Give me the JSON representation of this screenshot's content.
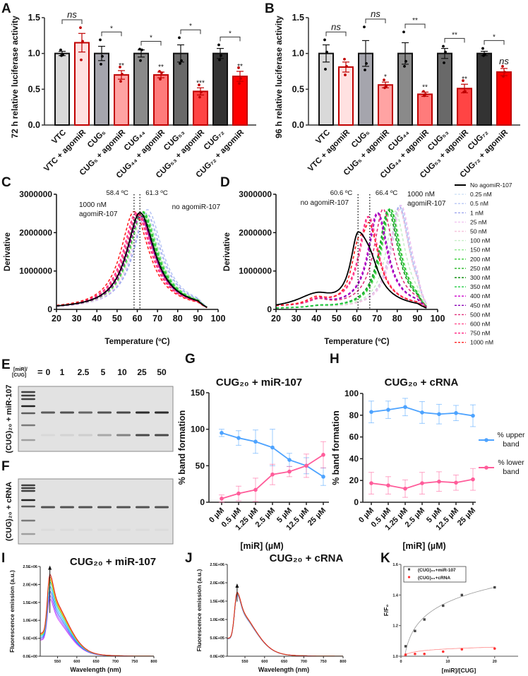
{
  "panel_letters": [
    "A",
    "B",
    "C",
    "D",
    "E",
    "F",
    "G",
    "H",
    "I",
    "J",
    "K"
  ],
  "chart_data": [
    {
      "id": "A",
      "type": "bar",
      "ylabel": "72 h relative luciferase activity",
      "yticks": [
        "0.0",
        "0.5",
        "1.0",
        "1.5"
      ],
      "ylim": [
        0,
        1.5
      ],
      "categories": [
        "VTC",
        "VTC + agomiR",
        "CUG₅",
        "CUG₅ + agomiR",
        "CUG₄₄",
        "CUG₄₄ + agomiR",
        "CUG₅₃",
        "CUG₅₃ + agomiR",
        "CUG₇₂",
        "CUG₇₂ + agomiR"
      ],
      "values": [
        1.0,
        1.15,
        1.0,
        0.7,
        1.0,
        0.7,
        1.0,
        0.47,
        1.0,
        0.68
      ],
      "sem": [
        0.03,
        0.13,
        0.1,
        0.06,
        0.05,
        0.04,
        0.12,
        0.05,
        0.07,
        0.07
      ],
      "points": [
        [
          1.05,
          0.98,
          0.97
        ],
        [
          1.36,
          1.17,
          0.91
        ],
        [
          1.19,
          0.96,
          0.85
        ],
        [
          0.81,
          0.71,
          0.61
        ],
        [
          1.06,
          1.05,
          0.9
        ],
        [
          0.75,
          0.73,
          0.64
        ],
        [
          1.22,
          0.9,
          0.86
        ],
        [
          0.56,
          0.46,
          0.39
        ],
        [
          1.12,
          0.97,
          0.91
        ],
        [
          0.8,
          0.65,
          0.58
        ]
      ],
      "stars": [
        "",
        "",
        "",
        "**",
        "",
        "**",
        "",
        "***",
        "",
        "**"
      ],
      "brackets": [
        "ns",
        "*",
        "*",
        "*",
        "*"
      ],
      "fills": [
        "#d9d9d9",
        "#ffe1e1",
        "#a5a5ad",
        "#ffa3a3",
        "#8a8a8a",
        "#ff7b7b",
        "#696969",
        "#ff4444",
        "#333333",
        "#ff0000"
      ]
    },
    {
      "id": "B",
      "type": "bar",
      "ylabel": "96 h relative luciferase activity",
      "yticks": [
        "0.0",
        "0.5",
        "1.0",
        "1.5"
      ],
      "ylim": [
        0,
        1.5
      ],
      "categories": [
        "VTC",
        "VTC + agomiR",
        "CUG₅",
        "CUG₅ + agomiR",
        "CUG₄₄",
        "CUG₄₄ + agomiR",
        "CUG₅₃",
        "CUG₅₃ + agomiR",
        "CUG₇₂",
        "CUG₇₂ + agomiR"
      ],
      "values": [
        1.0,
        0.81,
        1.0,
        0.56,
        1.0,
        0.43,
        1.0,
        0.51,
        1.0,
        0.74
      ],
      "sem": [
        0.12,
        0.07,
        0.18,
        0.04,
        0.15,
        0.03,
        0.07,
        0.06,
        0.03,
        0.05
      ],
      "points": [
        [
          1.19,
          1.02,
          0.78
        ],
        [
          0.92,
          0.82,
          0.7
        ],
        [
          1.37,
          0.86,
          0.77
        ],
        [
          0.63,
          0.54,
          0.52
        ],
        [
          1.3,
          0.89,
          0.82
        ],
        [
          0.47,
          0.43,
          0.41
        ],
        [
          1.1,
          1.02,
          0.87
        ],
        [
          0.62,
          0.47,
          0.46
        ],
        [
          1.07,
          0.99,
          0.97
        ],
        [
          0.82,
          0.74,
          0.68
        ]
      ],
      "stars": [
        "",
        "",
        "",
        "*",
        "",
        "**",
        "",
        "**",
        "",
        "ns"
      ],
      "brackets": [
        "ns",
        "ns",
        "**",
        "**",
        "*"
      ],
      "fills": [
        "#d9d9d9",
        "#ffe1e1",
        "#a5a5ad",
        "#ffa3a3",
        "#8a8a8a",
        "#ff7b7b",
        "#696969",
        "#ff4444",
        "#333333",
        "#ff0000"
      ]
    },
    {
      "id": "C",
      "type": "line",
      "xlabel": "Temperature (ºC)",
      "ylabel": "Derivative",
      "xticks": [
        "20",
        "30",
        "40",
        "50",
        "60",
        "70",
        "80",
        "90",
        "100"
      ],
      "yticks": [
        "0",
        "1000000",
        "2000000",
        "3000000"
      ],
      "xlim": [
        20,
        100
      ],
      "ylim": [
        0,
        3000000
      ],
      "vlines": [
        {
          "value": 58.4,
          "label": "58.4 ºC"
        },
        {
          "value": 61.3,
          "label": "61.3 ºC"
        }
      ],
      "annotations": [
        "1000 nM",
        "agomiR-107",
        "no agomiR-107"
      ],
      "series": [
        {
          "name": "No agomiR-107",
          "tm": 61.3,
          "peak": 2520000
        },
        {
          "name": "0.25 nM",
          "tm": 64.0,
          "peak": 2450000
        },
        {
          "name": "0.5 nM",
          "tm": 65.0,
          "peak": 2600000
        },
        {
          "name": "1 nM",
          "tm": 64.5,
          "peak": 2500000
        },
        {
          "name": "25 nM",
          "tm": 63.0,
          "peak": 2300000
        },
        {
          "name": "50 nM",
          "tm": 62.5,
          "peak": 2400000
        },
        {
          "name": "100 nM",
          "tm": 63.0,
          "peak": 2500000
        },
        {
          "name": "150 nM",
          "tm": 63.0,
          "peak": 2550000
        },
        {
          "name": "200 nM",
          "tm": 62.5,
          "peak": 2550000
        },
        {
          "name": "250 nM",
          "tm": 62.0,
          "peak": 2500000
        },
        {
          "name": "300 nM",
          "tm": 61.5,
          "peak": 2450000
        },
        {
          "name": "350 nM",
          "tm": 62.0,
          "peak": 2550000
        },
        {
          "name": "400 nM",
          "tm": 61.5,
          "peak": 2400000
        },
        {
          "name": "450 nM",
          "tm": 61.0,
          "peak": 2450000
        },
        {
          "name": "500 nM",
          "tm": 60.5,
          "peak": 2500000
        },
        {
          "name": "600 nM",
          "tm": 60.0,
          "peak": 2500000
        },
        {
          "name": "750 nM",
          "tm": 59.5,
          "peak": 2520000
        },
        {
          "name": "1000 nM",
          "tm": 58.4,
          "peak": 2550000
        }
      ]
    },
    {
      "id": "D",
      "type": "line",
      "xlabel": "Temperature (ºC)",
      "ylabel": "Derivative",
      "xticks": [
        "20",
        "30",
        "40",
        "50",
        "60",
        "70",
        "80",
        "90",
        "100"
      ],
      "yticks": [
        "0",
        "1000000",
        "2000000",
        "3000000"
      ],
      "xlim": [
        20,
        100
      ],
      "ylim": [
        0,
        3000000
      ],
      "vlines": [
        {
          "value": 60.6,
          "label": "60.6 ºC"
        },
        {
          "value": 66.4,
          "label": "66.4 ºC"
        }
      ],
      "annotations": [
        "no agomiR-107",
        "1000 nM",
        "agomiR-107"
      ],
      "legend": "right",
      "series": [
        {
          "name": "No agomiR-107",
          "color": "#000000",
          "dashed": false,
          "tm": 60.6,
          "peak": 1850000
        },
        {
          "name": "0.25 nM",
          "color": "#cfe0f5",
          "dashed": true,
          "tm": 81.0,
          "peak": 2650000
        },
        {
          "name": "0.5 nM",
          "color": "#b8c6f5",
          "dashed": true,
          "tm": 81.5,
          "peak": 2700000
        },
        {
          "name": "1 nM",
          "color": "#a0a8ee",
          "dashed": true,
          "tm": 81.0,
          "peak": 2680000
        },
        {
          "name": "25 nM",
          "color": "#f0c4f0",
          "dashed": true,
          "tm": 82.0,
          "peak": 2700000
        },
        {
          "name": "50 nM",
          "color": "#f5c6dc",
          "dashed": true,
          "tm": 81.0,
          "peak": 2600000
        },
        {
          "name": "100 nM",
          "color": "#c6efc6",
          "dashed": true,
          "tm": 79.0,
          "peak": 2550000
        },
        {
          "name": "150 nM",
          "color": "#8ee88e",
          "dashed": true,
          "tm": 77.0,
          "peak": 2600000
        },
        {
          "name": "200 nM",
          "color": "#33cc33",
          "dashed": true,
          "tm": 76.0,
          "peak": 2600000
        },
        {
          "name": "250 nM",
          "color": "#22b522",
          "dashed": true,
          "tm": 76.5,
          "peak": 2620000
        },
        {
          "name": "300 nM",
          "color": "#118f11",
          "dashed": true,
          "tm": 75.5,
          "peak": 2580000
        },
        {
          "name": "350 nM",
          "color": "#22cc44",
          "dashed": true,
          "tm": 76.0,
          "peak": 2600000
        },
        {
          "name": "400 nM",
          "color": "#cc00cc",
          "dashed": true,
          "tm": 70.0,
          "peak": 2450000
        },
        {
          "name": "450 nM",
          "color": "#8a00b5",
          "dashed": true,
          "tm": 70.5,
          "peak": 2450000
        },
        {
          "name": "500 nM",
          "color": "#e0307a",
          "dashed": true,
          "tm": 73.0,
          "peak": 2550000
        },
        {
          "name": "600 nM",
          "color": "#ff5a96",
          "dashed": true,
          "tm": 66.0,
          "peak": 2350000
        },
        {
          "name": "750 nM",
          "color": "#ff2080",
          "dashed": true,
          "tm": 65.5,
          "peak": 2350000
        },
        {
          "name": "1000 nM",
          "color": "#ff2020",
          "dashed": true,
          "tm": 66.4,
          "peak": 1800000
        }
      ]
    },
    {
      "id": "E",
      "type": "gel",
      "conc_label_1": "[miR]/",
      "conc_label_2": "[CUG]",
      "equals": "=",
      "lanes": [
        "0",
        "1",
        "2.5",
        "5",
        "10",
        "25",
        "50"
      ],
      "side_label": "(CUG)₂₀ + miR-107",
      "upper_band": [
        0.7,
        0.75,
        0.65,
        0.75,
        0.8,
        0.95,
        0.95
      ],
      "lower_band": [
        0.05,
        0.08,
        0.1,
        0.3,
        0.5,
        0.8,
        0.8
      ]
    },
    {
      "id": "F",
      "type": "gel",
      "side_label": "(CUG)₂₀ + cRNA",
      "upper_band": [
        0.75,
        0.75,
        0.75,
        0.75,
        0.75,
        0.75,
        0.75
      ],
      "lower_band": [
        0.03,
        0.03,
        0.03,
        0.03,
        0.03,
        0.03,
        0.03
      ]
    },
    {
      "id": "G",
      "type": "line",
      "title": "CUG₂₀ + miR-107",
      "xlabel": "[miR] (µM)",
      "ylabel": "% band formation",
      "categories": [
        "0 µM",
        "0.5 µM",
        "1.25 µM",
        "2.5 µM",
        "5 µM",
        "12.5 µM",
        "25 µM"
      ],
      "yticks": [
        "0",
        "50",
        "100",
        "150"
      ],
      "ylim": [
        0,
        150
      ],
      "series": [
        {
          "name": "% upper band",
          "color": "#4da3ff",
          "values": [
            95,
            88,
            83,
            75,
            58,
            50,
            35
          ],
          "err": [
            5,
            10,
            16,
            25,
            9,
            11,
            12
          ]
        },
        {
          "name": "% lower band",
          "color": "#ff5c9a",
          "values": [
            5,
            12,
            17,
            38,
            42,
            50,
            65
          ],
          "err": [
            5,
            10,
            16,
            14,
            7,
            16,
            18
          ]
        }
      ]
    },
    {
      "id": "H",
      "type": "line",
      "title": "CUG₂₀ + cRNA",
      "xlabel": "[miR] (µM)",
      "ylabel": "% band formation",
      "categories": [
        "0 µM",
        "0.5 µM",
        "1.25 µM",
        "2.5 µM",
        "5 µM",
        "12.5 µM",
        "25 µM"
      ],
      "yticks": [
        "0",
        "20",
        "40",
        "60",
        "80",
        "100"
      ],
      "ylim": [
        0,
        100
      ],
      "legend_lines": [
        [
          "% upper",
          "band"
        ],
        [
          "% lower",
          "band"
        ]
      ],
      "series": [
        {
          "name": "% upper band",
          "color": "#4da3ff",
          "values": [
            83,
            85,
            87.5,
            82.5,
            81,
            82,
            79.5
          ],
          "err": [
            10,
            8,
            8,
            10,
            9,
            7,
            10
          ]
        },
        {
          "name": "% lower band",
          "color": "#ff5c9a",
          "values": [
            17.5,
            15.5,
            12.5,
            17.5,
            19,
            18,
            21
          ],
          "err": [
            10,
            8,
            8,
            10,
            9,
            7,
            10
          ]
        }
      ]
    },
    {
      "id": "I",
      "type": "line",
      "title": "CUG₂₀ + miR-107",
      "xlabel": "Wavelength (nm)",
      "ylabel": "Fluorescence emission (a.u.)",
      "xticks": [
        "550",
        "600",
        "650",
        "700",
        "750",
        "800"
      ],
      "yticks": [
        "0.0E+00",
        "5.0E+05",
        "1.0E+06",
        "1.5E+06",
        "2.0E+06",
        "2.5E+06"
      ],
      "xlim": [
        505,
        800
      ],
      "ylim": [
        0,
        2500000
      ],
      "peak_nm": 530,
      "peaks": [
        1600000,
        1700000,
        1820000,
        1950000,
        2080000,
        2150000,
        2220000,
        2290000
      ],
      "colors": [
        "#cc44ff",
        "#9966ff",
        "#4466ff",
        "#22bbff",
        "#33dd99",
        "#ddcc22",
        "#ff9922",
        "#dd2222"
      ]
    },
    {
      "id": "J",
      "type": "line",
      "title": "CUG₂₀ + cRNA",
      "xlabel": "Wavelength (nm)",
      "ylabel": "Fluorescence emission (a.u.)",
      "xticks": [
        "550",
        "600",
        "650",
        "700",
        "750",
        "800"
      ],
      "yticks": [
        "0.0E+00",
        "5.0E+05",
        "1.0E+06",
        "1.5E+06",
        "2.0E+06",
        "2.5E+06"
      ],
      "xlim": [
        505,
        800
      ],
      "ylim": [
        0,
        2500000
      ],
      "peak_nm": 530,
      "peaks": [
        1680000,
        1690000,
        1700000,
        1710000,
        1720000,
        1730000,
        1740000,
        1750000
      ],
      "colors": [
        "#cc44ff",
        "#9966ff",
        "#4466ff",
        "#22bbff",
        "#33dd99",
        "#ddcc22",
        "#ff9922",
        "#dd2222"
      ]
    },
    {
      "id": "K",
      "type": "scatter",
      "xlabel": "[miR]/[CUG]",
      "ylabel": "F/F₀",
      "xticks": [
        "0",
        "10",
        "20"
      ],
      "yticks": [
        "1.0",
        "1.2",
        "1.4",
        "1.6"
      ],
      "xlim": [
        0,
        25
      ],
      "ylim": [
        1.0,
        1.6
      ],
      "legend": "top-left",
      "series": [
        {
          "name": "(CUG)₂₀+miR-107",
          "color": "#444444",
          "x": [
            1,
            3,
            5,
            9,
            13,
            20
          ],
          "y": [
            1.065,
            1.165,
            1.24,
            1.33,
            1.4,
            1.45
          ]
        },
        {
          "name": "(CUG)₂₀+cRNA",
          "color": "#ff3333",
          "x": [
            1,
            3,
            5,
            9,
            13,
            20
          ],
          "y": [
            1.01,
            1.015,
            1.015,
            1.03,
            1.045,
            1.05
          ]
        }
      ]
    }
  ]
}
